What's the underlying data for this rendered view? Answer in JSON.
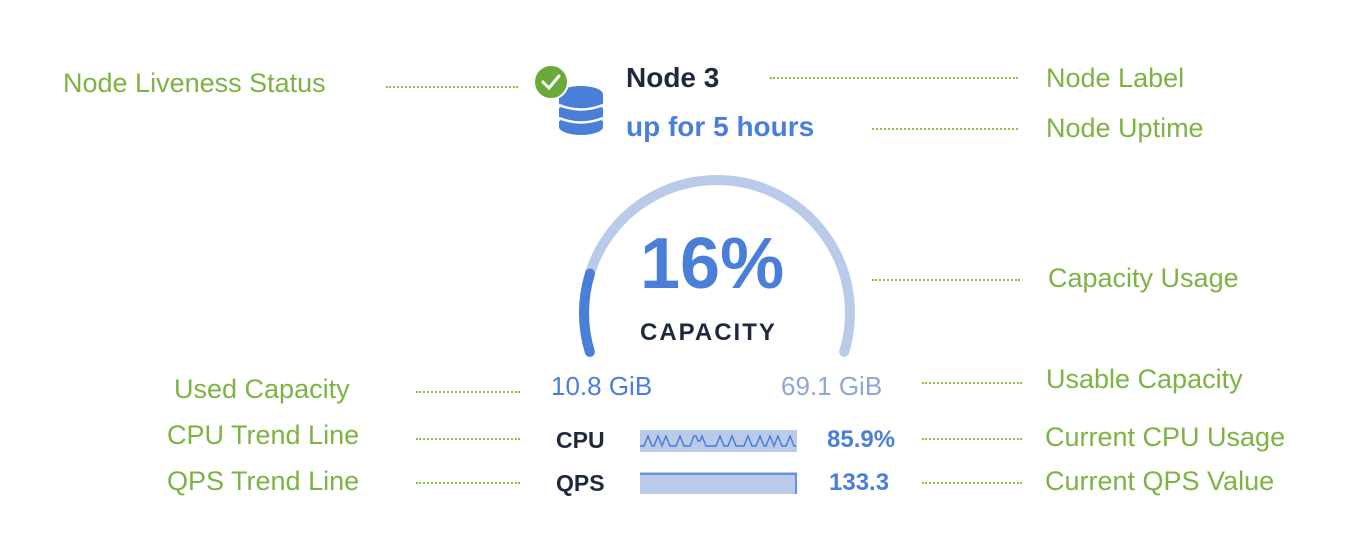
{
  "node": {
    "label": "Node 3",
    "uptime": "up for 5 hours",
    "liveness_icon": "check-circle-icon",
    "node_icon": "database-icon"
  },
  "capacity": {
    "percent_label": "16%",
    "percent": 16,
    "caption": "CAPACITY",
    "used": "10.8 GiB",
    "usable": "69.1 GiB"
  },
  "metrics": {
    "cpu": {
      "label": "CPU",
      "value": "85.9%"
    },
    "qps": {
      "label": "QPS",
      "value": "133.3"
    }
  },
  "annotations": {
    "liveness": "Node Liveness Status",
    "label": "Node Label",
    "uptime": "Node Uptime",
    "capacity_usage": "Capacity Usage",
    "used_capacity": "Used Capacity",
    "usable_capacity": "Usable Capacity",
    "cpu_trend": "CPU Trend Line",
    "cpu_current": "Current CPU Usage",
    "qps_trend": "QPS Trend Line",
    "qps_current": "Current QPS Value"
  },
  "colors": {
    "accent": "#4a7fd9",
    "track": "#b9cbe9",
    "annotation": "#7cb342",
    "live": "#6aaa3a"
  }
}
